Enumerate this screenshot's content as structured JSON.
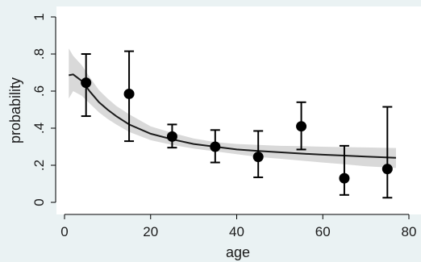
{
  "chart_data": {
    "type": "scatter",
    "xlabel": "age",
    "ylabel": "probability",
    "xlim": [
      0,
      80
    ],
    "ylim": [
      0,
      1
    ],
    "x_ticks": [
      0,
      20,
      40,
      60,
      80
    ],
    "x_tick_labels": [
      "0",
      "20",
      "40",
      "60",
      "80"
    ],
    "y_ticks": [
      0,
      0.2,
      0.4,
      0.6,
      0.8,
      1
    ],
    "y_tick_labels": [
      "0",
      ".2",
      ".4",
      ".6",
      ".8",
      "1"
    ],
    "grid": false,
    "points": [
      {
        "x": 5,
        "y": 0.645,
        "lo": 0.465,
        "hi": 0.8
      },
      {
        "x": 15,
        "y": 0.585,
        "lo": 0.33,
        "hi": 0.815
      },
      {
        "x": 25,
        "y": 0.355,
        "lo": 0.295,
        "hi": 0.42
      },
      {
        "x": 35,
        "y": 0.3,
        "lo": 0.215,
        "hi": 0.39
      },
      {
        "x": 45,
        "y": 0.245,
        "lo": 0.135,
        "hi": 0.385
      },
      {
        "x": 55,
        "y": 0.41,
        "lo": 0.285,
        "hi": 0.54
      },
      {
        "x": 65,
        "y": 0.13,
        "lo": 0.04,
        "hi": 0.305
      },
      {
        "x": 75,
        "y": 0.18,
        "lo": 0.025,
        "hi": 0.515
      }
    ],
    "fit_line": {
      "x": [
        1,
        2,
        4,
        6,
        8,
        10,
        12,
        15,
        20,
        25,
        30,
        35,
        40,
        45,
        50,
        55,
        60,
        65,
        70,
        77
      ],
      "y": [
        0.685,
        0.69,
        0.655,
        0.595,
        0.54,
        0.5,
        0.465,
        0.42,
        0.37,
        0.34,
        0.315,
        0.3,
        0.285,
        0.277,
        0.27,
        0.263,
        0.257,
        0.252,
        0.247,
        0.24
      ]
    },
    "confidence_band": {
      "x": [
        1,
        2,
        4,
        6,
        8,
        10,
        12,
        15,
        20,
        25,
        30,
        35,
        40,
        45,
        50,
        55,
        60,
        65,
        70,
        77
      ],
      "lo": [
        0.56,
        0.6,
        0.575,
        0.53,
        0.485,
        0.45,
        0.42,
        0.38,
        0.335,
        0.31,
        0.29,
        0.275,
        0.26,
        0.245,
        0.235,
        0.225,
        0.215,
        0.205,
        0.195,
        0.185
      ],
      "hi": [
        0.83,
        0.79,
        0.74,
        0.67,
        0.605,
        0.56,
        0.52,
        0.475,
        0.41,
        0.375,
        0.345,
        0.325,
        0.315,
        0.31,
        0.305,
        0.303,
        0.3,
        0.298,
        0.296,
        0.293
      ]
    }
  },
  "colors": {
    "background": "#eaf2f3",
    "plot_area": "#ffffff",
    "band": "#d9d9d9",
    "line": "#1a1a1a",
    "marker": "#000000"
  }
}
